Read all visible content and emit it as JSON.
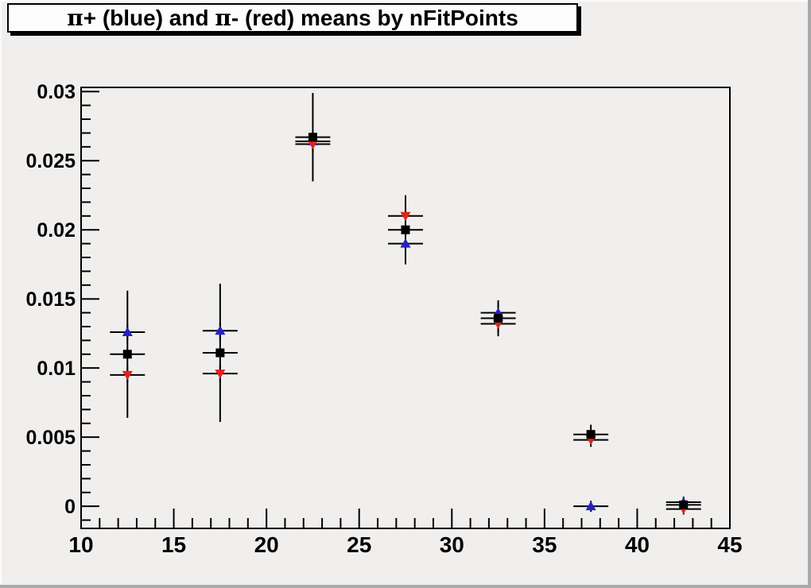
{
  "canvas": {
    "background_color": "#f0efee",
    "frame_color": "#000000"
  },
  "title": {
    "text": "π+ (blue) and π- (red) means by nFitPoints",
    "parts": [
      {
        "text": "π",
        "symbol": true
      },
      {
        "text": "+ (blue) and ",
        "symbol": false
      },
      {
        "text": "π",
        "symbol": true
      },
      {
        "text": "- (red) means by nFitPoints",
        "symbol": false
      }
    ]
  },
  "chart_data": {
    "type": "scatter",
    "title": "π+ (blue) and π- (red) means by nFitPoints",
    "xlabel": "",
    "ylabel": "",
    "grid": false,
    "legend": "none (colors named in title)",
    "x_axis": {
      "range_min": 10,
      "range_max": 45,
      "major_ticks": [
        10,
        15,
        20,
        25,
        30,
        35,
        40,
        45
      ],
      "major_tick_labels": [
        "10",
        "15",
        "20",
        "25",
        "30",
        "35",
        "40",
        "45"
      ],
      "minor_step": 1
    },
    "y_axis": {
      "range_min": -0.0016,
      "range_max": 0.0303,
      "major_ticks": [
        0,
        0.005,
        0.01,
        0.015,
        0.02,
        0.025,
        0.03
      ],
      "major_tick_labels": [
        "0",
        "0.005",
        "0.01",
        "0.015",
        "0.02",
        "0.025",
        "0.03"
      ],
      "minor_step": 0.001
    },
    "x": [
      12.5,
      17.5,
      22.5,
      27.5,
      32.5,
      37.5,
      42.5
    ],
    "x_err": 0.9,
    "error_bar_color": "#000000",
    "series": [
      {
        "name": "pi-plus means (blue up-triangles)",
        "marker": "triangle-up",
        "color": "#2621c7",
        "values": [
          0.0126,
          0.0127,
          0.0264,
          0.019,
          0.014,
          0.0,
          0.0003
        ],
        "y_err": [
          0.0006,
          0.0006,
          0.0006,
          0.0006,
          0.0007,
          0.0004,
          0.0004
        ]
      },
      {
        "name": "pi-minus means (red down-triangles)",
        "marker": "triangle-down",
        "color": "#e4211b",
        "values": [
          0.0095,
          0.0096,
          0.0262,
          0.021,
          0.0132,
          0.0048,
          -0.0002
        ],
        "y_err": [
          0.0006,
          0.0006,
          0.0006,
          0.0006,
          0.0006,
          0.0005,
          0.0004
        ]
      },
      {
        "name": "combined means (black squares)",
        "marker": "square",
        "color": "#000000",
        "values": [
          0.011,
          0.0111,
          0.0267,
          0.02,
          0.0136,
          0.0052,
          0.0001
        ],
        "y_err": [
          0.0046,
          0.005,
          0.0032,
          0.0025,
          0.0013,
          0.0007,
          0.0004
        ]
      }
    ]
  }
}
